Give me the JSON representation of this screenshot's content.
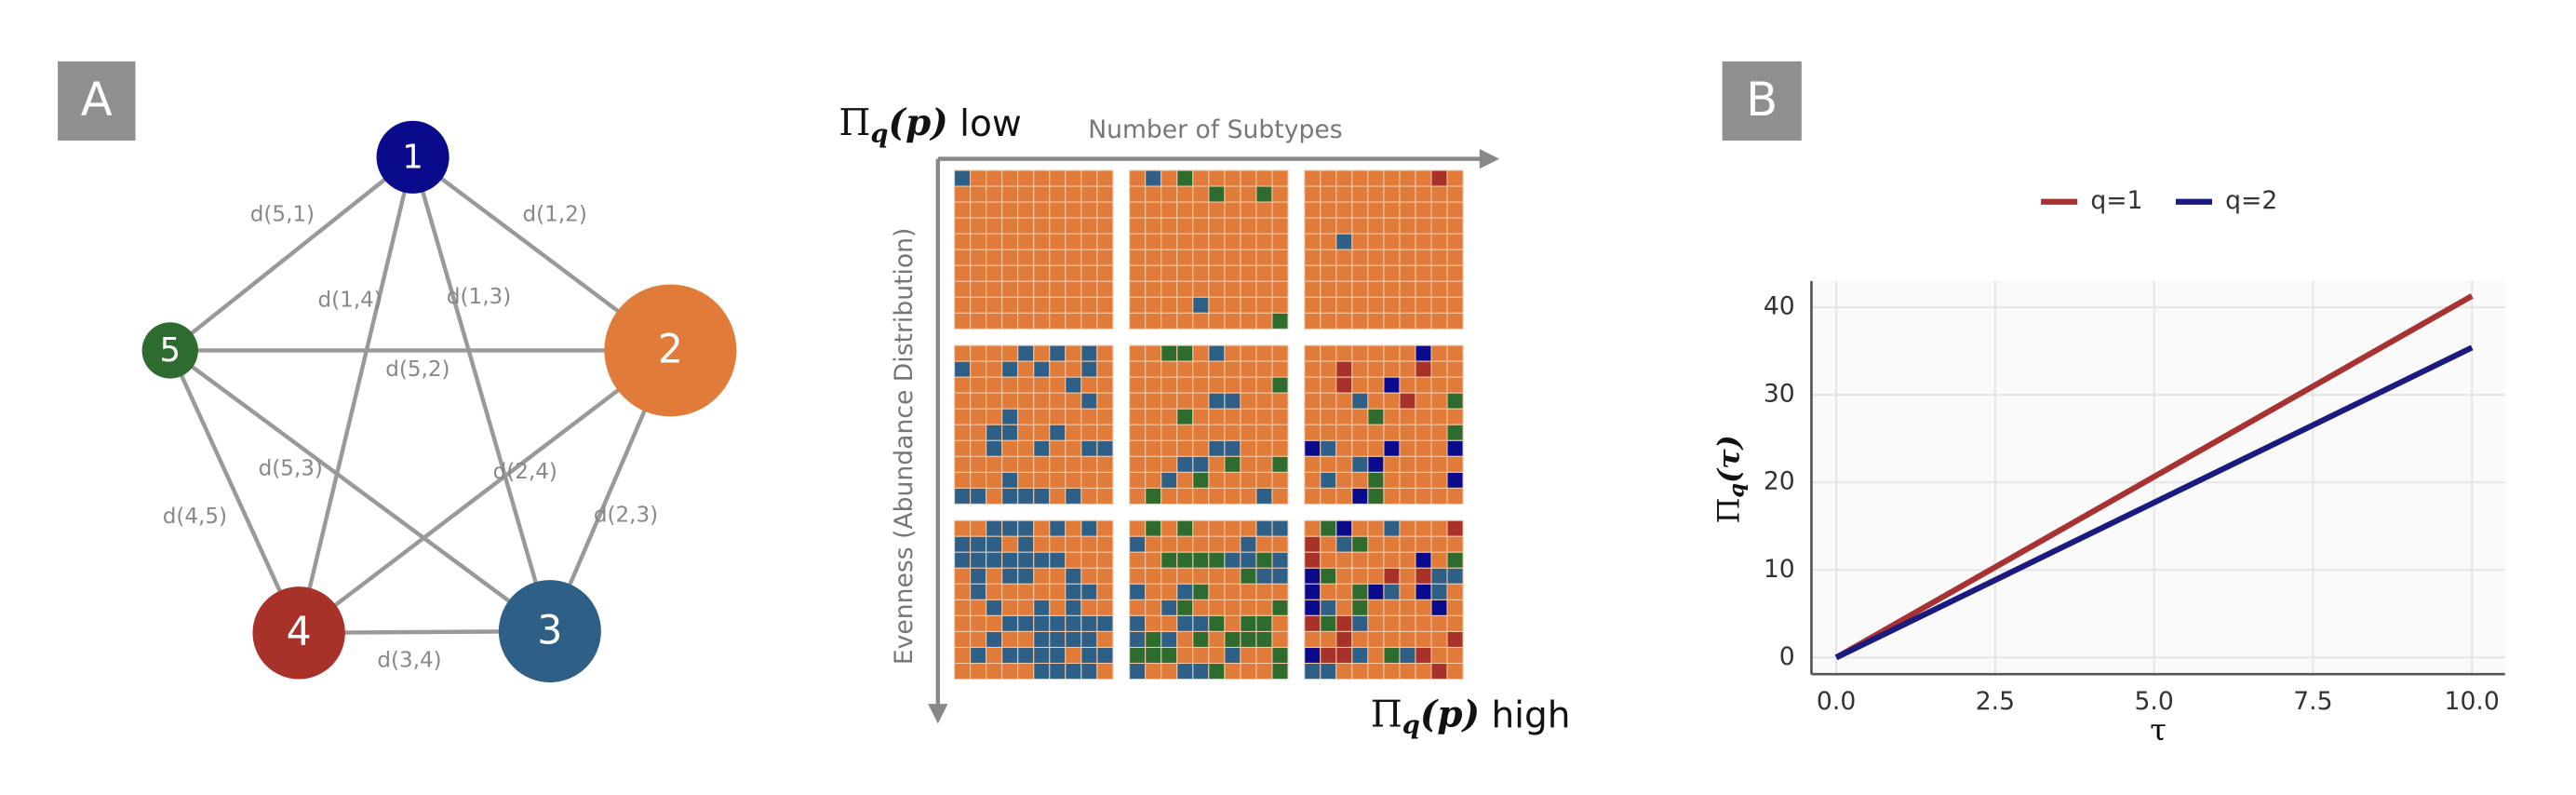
{
  "panel_a": {
    "label": "A",
    "nodes": [
      {
        "label": "1"
      },
      {
        "label": "2"
      },
      {
        "label": "3"
      },
      {
        "label": "4"
      },
      {
        "label": "5"
      }
    ],
    "edges": [
      {
        "label": "d(5,1)"
      },
      {
        "label": "d(1,2)"
      },
      {
        "label": "d(1,4)"
      },
      {
        "label": "d(1,3)"
      },
      {
        "label": "d(5,2)"
      },
      {
        "label": "d(5,3)"
      },
      {
        "label": "d(2,4)"
      },
      {
        "label": "d(4,5)"
      },
      {
        "label": "d(2,3)"
      },
      {
        "label": "d(3,4)"
      }
    ]
  },
  "panel_grid": {
    "top_label": {
      "symbol": "Π",
      "subscript": "q",
      "argument": "(p)",
      "suffix": " low"
    },
    "x_axis_label": "Number of Subtypes",
    "y_axis_label": "Evenness (Abundance Distribution)",
    "bottom_label": {
      "symbol": "Π",
      "subscript": "q",
      "argument": "(p)",
      "suffix": " high"
    }
  },
  "panel_b": {
    "label": "B"
  },
  "chart_data": {
    "type": "line",
    "x_label": "τ",
    "y_label": {
      "symbol": "Π",
      "subscript": "q",
      "argument": "(τ)"
    },
    "x": [
      0,
      10
    ],
    "series": [
      {
        "name": "q=1",
        "color": "#a83232",
        "values": [
          0,
          41.3
        ]
      },
      {
        "name": "q=2",
        "color": "#1a1a80",
        "values": [
          0,
          35.4
        ]
      }
    ],
    "xlim": [
      -0.39,
      10.52
    ],
    "ylim": [
      -1.9,
      43
    ],
    "xticks": [
      {
        "value": 0,
        "label": "0.0"
      },
      2.5,
      {
        "value": 5,
        "label": "5.0"
      },
      7.5,
      {
        "value": 10,
        "label": "10.0"
      }
    ],
    "yticks": [
      0,
      10,
      20,
      30,
      40
    ],
    "grid": true,
    "legend": "top"
  }
}
